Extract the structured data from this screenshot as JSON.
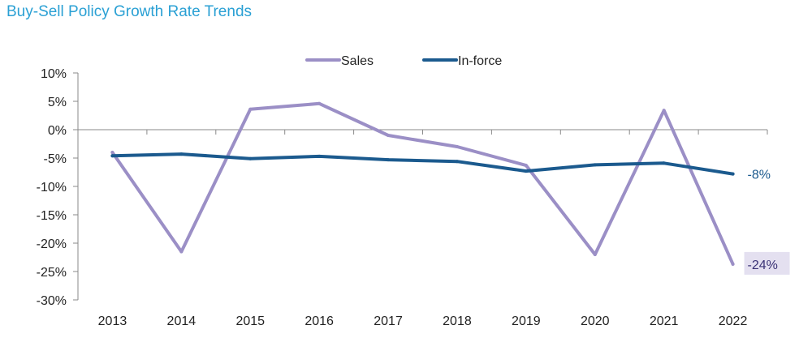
{
  "chart_data": {
    "type": "line",
    "title": "Buy-Sell Policy Growth Rate Trends",
    "xlabel": "",
    "ylabel": "",
    "categories": [
      "2013",
      "2014",
      "2015",
      "2016",
      "2017",
      "2018",
      "2019",
      "2020",
      "2021",
      "2022"
    ],
    "ylim": [
      -30,
      10
    ],
    "yticks": [
      10,
      5,
      0,
      -5,
      -10,
      -15,
      -20,
      -25,
      -30
    ],
    "ytick_labels": [
      "10%",
      "5%",
      "0%",
      "-5%",
      "-10%",
      "-15%",
      "-20%",
      "-25%",
      "-30%"
    ],
    "grid": false,
    "legend_position": "top-center",
    "series": [
      {
        "name": "Sales",
        "color": "#9b8fc6",
        "values": [
          -4,
          -21.5,
          3.6,
          4.6,
          -1,
          -3,
          -6.3,
          -22,
          3.4,
          -23.7
        ],
        "end_label": "-24%",
        "end_label_bg": "#e4e0f0"
      },
      {
        "name": "In-force",
        "color": "#1b5a8e",
        "values": [
          -4.6,
          -4.3,
          -5.1,
          -4.7,
          -5.3,
          -5.6,
          -7.3,
          -6.2,
          -5.9,
          -7.8
        ],
        "end_label": "-8%",
        "end_label_bg": ""
      }
    ]
  }
}
